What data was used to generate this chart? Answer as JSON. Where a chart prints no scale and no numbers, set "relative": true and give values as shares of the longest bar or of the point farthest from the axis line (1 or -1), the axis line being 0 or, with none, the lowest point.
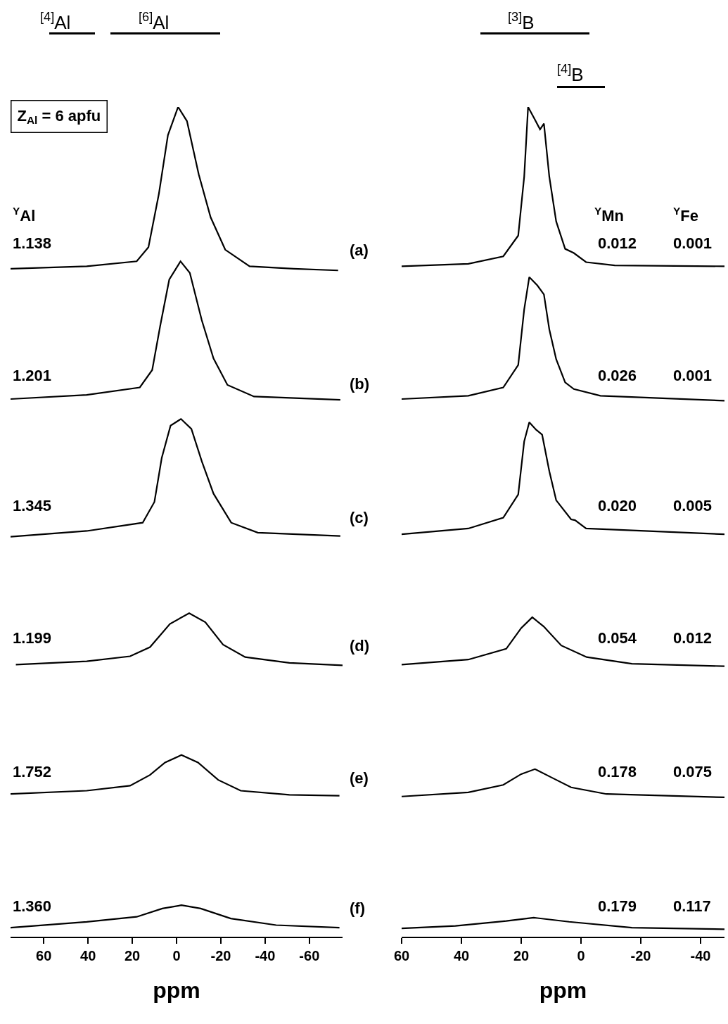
{
  "chart_data": [
    {
      "type": "line",
      "relative": true,
      "xlabel": "ppm",
      "xlim": [
        75,
        -75
      ],
      "xticks": [
        60,
        40,
        20,
        0,
        -20,
        -40,
        -60
      ],
      "series": [
        {
          "color": "#000000",
          "x": [
            75,
            40.6,
            18,
            12.7,
            8,
            3.9,
            -0.7,
            -4.7,
            -10,
            -15.4,
            -22,
            -33,
            -53,
            -73
          ],
          "values": [
            0.805,
            0.808,
            0.814,
            0.831,
            0.895,
            0.966,
            1.0,
            0.983,
            0.919,
            0.867,
            0.828,
            0.808,
            0.805,
            0.803
          ]
        },
        {
          "color": "#000000",
          "x": [
            75,
            40.6,
            16.6,
            11,
            7.4,
            3.3,
            -1.8,
            -6,
            -11.4,
            -16.7,
            -23,
            -35,
            -74
          ],
          "values": [
            0.648,
            0.653,
            0.662,
            0.683,
            0.736,
            0.792,
            0.814,
            0.8,
            0.743,
            0.697,
            0.665,
            0.651,
            0.647
          ]
        },
        {
          "color": "#000000",
          "x": [
            75,
            40.6,
            15.3,
            10,
            6.7,
            2.7,
            -2,
            -6.7,
            -11.4,
            -16.7,
            -24.7,
            -36.7,
            -74
          ],
          "values": [
            0.482,
            0.489,
            0.499,
            0.524,
            0.577,
            0.616,
            0.624,
            0.612,
            0.573,
            0.534,
            0.499,
            0.487,
            0.483
          ]
        },
        {
          "color": "#000000",
          "x": [
            72.6,
            40.6,
            21,
            12,
            3,
            -5.7,
            -13,
            -21,
            -31,
            -51,
            -75
          ],
          "values": [
            0.328,
            0.332,
            0.338,
            0.349,
            0.377,
            0.39,
            0.379,
            0.352,
            0.337,
            0.33,
            0.327
          ]
        },
        {
          "color": "#000000",
          "x": [
            75,
            40.6,
            21,
            12,
            5.2,
            -2.2,
            -9.7,
            -18.8,
            -29,
            -51,
            -73.6
          ],
          "values": [
            0.172,
            0.176,
            0.182,
            0.195,
            0.21,
            0.219,
            0.21,
            0.189,
            0.176,
            0.171,
            0.17
          ]
        },
        {
          "color": "#000000",
          "x": [
            75,
            40.6,
            18,
            6.4,
            -2.2,
            -10.9,
            -24.5,
            -45,
            -73.6
          ],
          "values": [
            0.011,
            0.018,
            0.024,
            0.034,
            0.038,
            0.034,
            0.022,
            0.014,
            0.011
          ]
        }
      ],
      "annotations": [
        "Z$_{Al}$ = 6 apfu",
        "$^{Y}$Al",
        "1.138",
        "1.201",
        "1.345",
        "1.199",
        "1.752",
        "1.360",
        "(a)",
        "(b)",
        "(c)",
        "(d)",
        "(e)",
        "(f)",
        "$^{[4]}$Al",
        "$^{[6]}$Al"
      ]
    },
    {
      "type": "line",
      "relative": true,
      "xlabel": "ppm",
      "xlim": [
        60,
        -48
      ],
      "xticks": [
        60,
        40,
        20,
        0,
        -20,
        -40
      ],
      "series": [
        {
          "color": "#000000",
          "x": [
            60,
            37.7,
            26,
            21,
            19,
            17.7,
            15.6,
            13.7,
            12.4,
            10.6,
            8.3,
            5.3,
            2.4,
            -1.7,
            -11.3,
            -48
          ],
          "values": [
            0.808,
            0.811,
            0.82,
            0.845,
            0.916,
            1.0,
            0.986,
            0.973,
            0.98,
            0.916,
            0.862,
            0.829,
            0.824,
            0.813,
            0.809,
            0.808
          ]
        },
        {
          "color": "#000000",
          "x": [
            60,
            37.7,
            26,
            21,
            19,
            17.3,
            14.6,
            12.4,
            10.6,
            8.3,
            5.3,
            2.4,
            -6.5,
            -48
          ],
          "values": [
            0.648,
            0.652,
            0.662,
            0.689,
            0.756,
            0.795,
            0.785,
            0.774,
            0.732,
            0.696,
            0.668,
            0.66,
            0.652,
            0.646
          ]
        },
        {
          "color": "#000000",
          "x": [
            60,
            37.7,
            26,
            21,
            19,
            17.3,
            15,
            13,
            10.6,
            8.3,
            3.3,
            2,
            -1.7,
            -48
          ],
          "values": [
            0.485,
            0.492,
            0.505,
            0.533,
            0.597,
            0.62,
            0.611,
            0.605,
            0.561,
            0.526,
            0.503,
            0.502,
            0.492,
            0.485
          ]
        },
        {
          "color": "#000000",
          "x": [
            60,
            37.7,
            25,
            20,
            16.3,
            12.5,
            6.6,
            -1.9,
            -17,
            -48
          ],
          "values": [
            0.328,
            0.334,
            0.347,
            0.372,
            0.385,
            0.374,
            0.351,
            0.337,
            0.329,
            0.326
          ]
        },
        {
          "color": "#000000",
          "x": [
            60,
            37.7,
            26,
            20,
            15.4,
            9.9,
            3.3,
            -8.5,
            -48
          ],
          "values": [
            0.169,
            0.174,
            0.183,
            0.196,
            0.202,
            0.192,
            0.18,
            0.172,
            0.168
          ]
        },
        {
          "color": "#000000",
          "x": [
            60,
            42,
            25,
            15.8,
            4,
            -17,
            -48
          ],
          "values": [
            0.01,
            0.013,
            0.019,
            0.023,
            0.018,
            0.011,
            0.009
          ]
        }
      ],
      "annotations": [
        "$^{Y}$Mn",
        "$^{Y}$Fe",
        "0.012",
        "0.001",
        "0.026",
        "0.001",
        "0.020",
        "0.005",
        "0.054",
        "0.012",
        "0.178",
        "0.075",
        "0.179",
        "0.117",
        "$^{[3]}$B",
        "$^{[4]}$B"
      ]
    }
  ]
}
